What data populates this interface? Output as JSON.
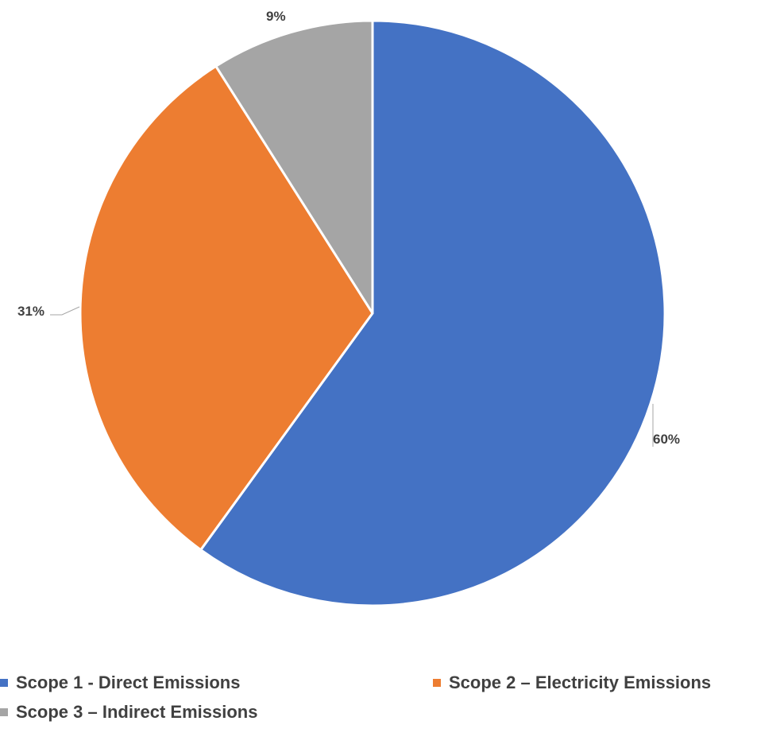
{
  "chart_data": {
    "type": "pie",
    "title": "",
    "categories": [
      "Scope 1 - Direct Emissions",
      "Scope 2 – Electricity Emissions",
      "Scope 3 – Indirect Emissions"
    ],
    "values": [
      60,
      31,
      9
    ],
    "data_labels": [
      "60%",
      "31%",
      "9%"
    ],
    "colors": [
      "#4472C4",
      "#ED7D31",
      "#A5A5A5"
    ],
    "start_angle": "12 o'clock",
    "direction": "clockwise",
    "legend_position": "bottom"
  }
}
